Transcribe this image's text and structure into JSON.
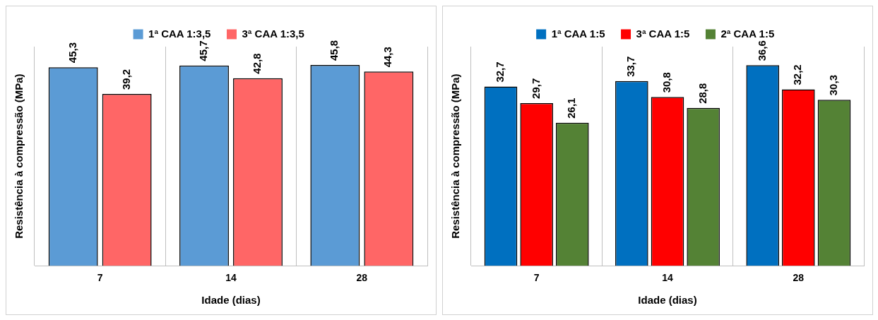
{
  "chart_data": [
    {
      "type": "bar",
      "categories": [
        "7",
        "14",
        "28"
      ],
      "xlabel": "Idade (dias)",
      "ylabel": "Resistência à compressão (MPa)",
      "tick_labels": "x",
      "grid": "x",
      "legend": "top",
      "series": [
        {
          "name": "1ª CAA 1:3,5",
          "color": "#5b9bd5",
          "values": [
            45.3,
            45.7,
            45.8
          ],
          "value_labels": [
            "45,3",
            "45,7",
            "45,8"
          ]
        },
        {
          "name": "3ª CAA 1:3,5",
          "color": "#ff6666",
          "values": [
            39.2,
            42.8,
            44.3
          ],
          "value_labels": [
            "39,2",
            "42,8",
            "44,3"
          ]
        }
      ]
    },
    {
      "type": "bar",
      "categories": [
        "7",
        "14",
        "28"
      ],
      "xlabel": "Idade (dias)",
      "ylabel": "Resistência à compressão (MPa)",
      "tick_labels": "x",
      "grid": "x",
      "legend": "top",
      "series": [
        {
          "name": "1ª CAA 1:5",
          "color": "#0070c0",
          "values": [
            32.7,
            33.7,
            36.6
          ],
          "value_labels": [
            "32,7",
            "33,7",
            "36,6"
          ]
        },
        {
          "name": "3ª CAA 1:5",
          "color": "#ff0000",
          "values": [
            29.7,
            30.8,
            32.2
          ],
          "value_labels": [
            "29,7",
            "30,8",
            "32,2"
          ]
        },
        {
          "name": "2ª CAA 1:5",
          "color": "#548235",
          "values": [
            26.1,
            28.8,
            30.3
          ],
          "value_labels": [
            "26,1",
            "28,8",
            "30,3"
          ]
        }
      ]
    }
  ]
}
